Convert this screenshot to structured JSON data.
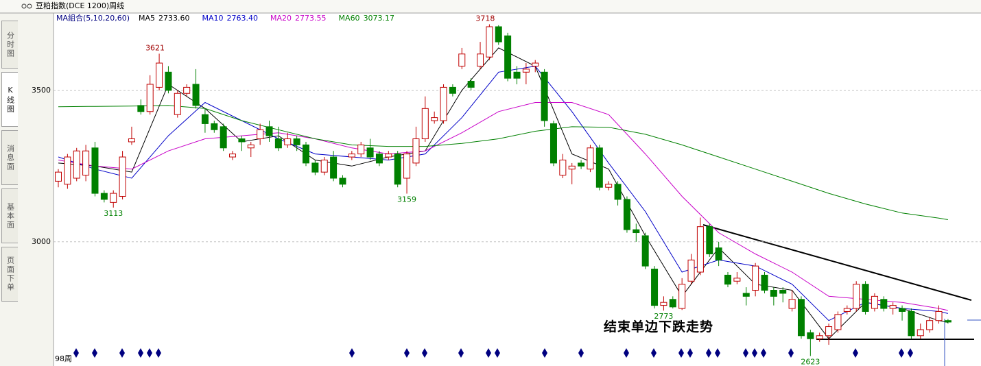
{
  "ui": {
    "tabs": [
      "分时图",
      "K线图",
      "消息面",
      "基本面",
      "页面下单"
    ]
  },
  "chart_data": {
    "type": "candlestick",
    "title": "豆粕指数(DCE 1200)周线",
    "indicator_label": "MA組合(5,10,20,60)",
    "period_label": "98周",
    "text_annotation": "结束单边下跌走势",
    "up_color": "#c00000",
    "down_color": "#008000",
    "ylim": [
      2590,
      3753
    ],
    "yticks": [
      3000,
      3500
    ],
    "grid": true,
    "open": [
      3200,
      3190,
      3210,
      3220,
      3310,
      3160,
      3130,
      3150,
      3330,
      3450,
      3430,
      3510,
      3560,
      3420,
      3490,
      3520,
      3420,
      3390,
      3380,
      3280,
      3340,
      3310,
      3340,
      3380,
      3340,
      3320,
      3340,
      3320,
      3260,
      3230,
      3280,
      3210,
      3280,
      3290,
      3310,
      3290,
      3280,
      3290,
      3210,
      3260,
      3340,
      3400,
      3400,
      3510,
      3580,
      3530,
      3580,
      3610,
      3710,
      3680,
      3560,
      3560,
      3580,
      3560,
      3390,
      3220,
      3240,
      3260,
      3240,
      3310,
      3180,
      3190,
      3140,
      3040,
      3020,
      2910,
      2790,
      2810,
      2780,
      2870,
      2900,
      3050,
      2980,
      2890,
      2870,
      2830,
      2840,
      2890,
      2840,
      2840,
      2780,
      2810,
      2700,
      2680,
      2690,
      2710,
      2770,
      2780,
      2860,
      2780,
      2810,
      2780,
      2780,
      2770,
      2690,
      2710,
      2740,
      2740
    ],
    "high": [
      3240,
      3290,
      3310,
      3320,
      3330,
      3170,
      3170,
      3300,
      3380,
      3470,
      3550,
      3621,
      3580,
      3500,
      3520,
      3570,
      3440,
      3400,
      3390,
      3300,
      3350,
      3330,
      3390,
      3400,
      3380,
      3360,
      3350,
      3330,
      3270,
      3280,
      3300,
      3220,
      3300,
      3330,
      3340,
      3300,
      3300,
      3300,
      3300,
      3380,
      3480,
      3430,
      3520,
      3520,
      3640,
      3540,
      3660,
      3718,
      3715,
      3690,
      3580,
      3590,
      3600,
      3570,
      3400,
      3290,
      3260,
      3270,
      3320,
      3320,
      3200,
      3200,
      3150,
      3060,
      3030,
      2920,
      2820,
      2820,
      2880,
      2960,
      3080,
      3060,
      3000,
      2900,
      2900,
      2850,
      2930,
      2900,
      2850,
      2850,
      2840,
      2820,
      2710,
      2700,
      2730,
      2770,
      2790,
      2870,
      2870,
      2830,
      2820,
      2800,
      2790,
      2780,
      2730,
      2750,
      2790,
      2745
    ],
    "low": [
      3180,
      3175,
      3200,
      3200,
      3150,
      3130,
      3113,
      3140,
      3320,
      3420,
      3420,
      3500,
      3490,
      3410,
      3480,
      3440,
      3360,
      3360,
      3300,
      3270,
      3300,
      3280,
      3320,
      3330,
      3300,
      3310,
      3300,
      3250,
      3220,
      3220,
      3200,
      3180,
      3270,
      3280,
      3270,
      3250,
      3270,
      3180,
      3159,
      3250,
      3330,
      3390,
      3390,
      3480,
      3570,
      3500,
      3570,
      3600,
      3650,
      3530,
      3520,
      3520,
      3560,
      3380,
      3250,
      3210,
      3190,
      3240,
      3230,
      3170,
      3170,
      3120,
      3030,
      3000,
      2910,
      2780,
      2773,
      2780,
      2775,
      2860,
      2890,
      2950,
      2920,
      2850,
      2860,
      2790,
      2820,
      2830,
      2790,
      2800,
      2770,
      2680,
      2623,
      2670,
      2660,
      2700,
      2760,
      2770,
      2760,
      2770,
      2770,
      2760,
      2740,
      2680,
      2680,
      2700,
      2730,
      2730
    ],
    "close": [
      3230,
      3280,
      3300,
      3300,
      3160,
      3140,
      3160,
      3280,
      3340,
      3430,
      3520,
      3590,
      3500,
      3490,
      3510,
      3450,
      3390,
      3370,
      3310,
      3290,
      3330,
      3320,
      3370,
      3350,
      3310,
      3340,
      3320,
      3260,
      3230,
      3270,
      3210,
      3190,
      3290,
      3320,
      3280,
      3260,
      3290,
      3190,
      3290,
      3340,
      3440,
      3410,
      3510,
      3490,
      3620,
      3510,
      3620,
      3710,
      3660,
      3540,
      3540,
      3570,
      3590,
      3400,
      3260,
      3270,
      3250,
      3250,
      3310,
      3180,
      3190,
      3140,
      3040,
      3030,
      2920,
      2790,
      2800,
      2785,
      2860,
      2940,
      3050,
      2960,
      2940,
      2860,
      2880,
      2820,
      2920,
      2840,
      2820,
      2830,
      2810,
      2690,
      2680,
      2690,
      2720,
      2760,
      2780,
      2860,
      2770,
      2820,
      2780,
      2790,
      2770,
      2690,
      2710,
      2740,
      2770,
      2735
    ],
    "moving_averages": [
      {
        "name": "MA5",
        "color": "#000000",
        "x": [
          0,
          4,
          8,
          12,
          16,
          20,
          24,
          28,
          32,
          36,
          40,
          44,
          48,
          52,
          56,
          60,
          64,
          68,
          72,
          76,
          80,
          84,
          88,
          92,
          96,
          97
        ],
        "values": [
          3260,
          3250,
          3230,
          3520,
          3440,
          3330,
          3350,
          3270,
          3250,
          3280,
          3300,
          3500,
          3640,
          3580,
          3290,
          3240,
          3020,
          2820,
          2980,
          2860,
          2840,
          2680,
          2800,
          2780,
          2740,
          2733.6
        ],
        "value_labels": [
          null,
          null,
          null,
          null,
          null,
          null,
          null,
          null,
          null,
          null,
          null,
          null,
          null,
          null,
          null,
          null,
          null,
          null,
          null,
          null,
          null,
          null,
          null,
          null,
          null,
          "2733.60"
        ]
      },
      {
        "name": "MA10",
        "color": "#0000c8",
        "x": [
          0,
          4,
          8,
          12,
          16,
          20,
          24,
          28,
          32,
          36,
          40,
          44,
          48,
          52,
          56,
          60,
          64,
          68,
          72,
          76,
          80,
          84,
          88,
          92,
          96,
          97
        ],
        "values": [
          3280,
          3240,
          3210,
          3350,
          3460,
          3400,
          3340,
          3290,
          3280,
          3270,
          3290,
          3410,
          3560,
          3580,
          3430,
          3260,
          3100,
          2900,
          2940,
          2920,
          2860,
          2740,
          2800,
          2780,
          2770,
          2763.4
        ],
        "value_labels": [
          null,
          null,
          null,
          null,
          null,
          null,
          null,
          null,
          null,
          null,
          null,
          null,
          null,
          null,
          null,
          null,
          null,
          null,
          null,
          null,
          null,
          null,
          null,
          null,
          null,
          "2763.40"
        ]
      },
      {
        "name": "MA20",
        "color": "#c800c8",
        "x": [
          0,
          4,
          8,
          12,
          16,
          20,
          24,
          28,
          32,
          36,
          40,
          44,
          48,
          52,
          56,
          60,
          64,
          68,
          72,
          76,
          80,
          84,
          88,
          92,
          96,
          97
        ],
        "values": [
          3270,
          3250,
          3240,
          3300,
          3340,
          3350,
          3360,
          3340,
          3310,
          3290,
          3300,
          3360,
          3430,
          3460,
          3460,
          3420,
          3290,
          3150,
          3030,
          2960,
          2900,
          2820,
          2810,
          2800,
          2780,
          2773.55
        ],
        "value_labels": [
          null,
          null,
          null,
          null,
          null,
          null,
          null,
          null,
          null,
          null,
          null,
          null,
          null,
          null,
          null,
          null,
          null,
          null,
          null,
          null,
          null,
          null,
          null,
          null,
          null,
          "2773.55"
        ]
      },
      {
        "name": "MA60",
        "color": "#008000",
        "x": [
          0,
          4,
          8,
          12,
          16,
          20,
          24,
          28,
          32,
          36,
          40,
          44,
          48,
          52,
          56,
          60,
          64,
          68,
          72,
          76,
          80,
          84,
          88,
          92,
          96,
          97
        ],
        "values": [
          3446,
          3447,
          3448,
          3450,
          3440,
          3400,
          3370,
          3340,
          3320,
          3315,
          3315,
          3325,
          3340,
          3365,
          3380,
          3378,
          3355,
          3320,
          3280,
          3240,
          3200,
          3160,
          3125,
          3095,
          3078,
          3073.17
        ],
        "value_labels": [
          null,
          null,
          null,
          null,
          null,
          null,
          null,
          null,
          null,
          null,
          null,
          null,
          null,
          null,
          null,
          null,
          null,
          null,
          null,
          null,
          null,
          null,
          null,
          null,
          null,
          "3073.17"
        ]
      }
    ],
    "annotations": [
      {
        "index": 11,
        "value": 3621,
        "position": "above"
      },
      {
        "index": 6,
        "value": 3113,
        "position": "below"
      },
      {
        "index": 38,
        "value": 3159,
        "position": "below"
      },
      {
        "index": 47,
        "value": 3718,
        "position": "above"
      },
      {
        "index": 66,
        "value": 2773,
        "position": "below"
      },
      {
        "index": 82,
        "value": 2623,
        "position": "below"
      }
    ]
  }
}
